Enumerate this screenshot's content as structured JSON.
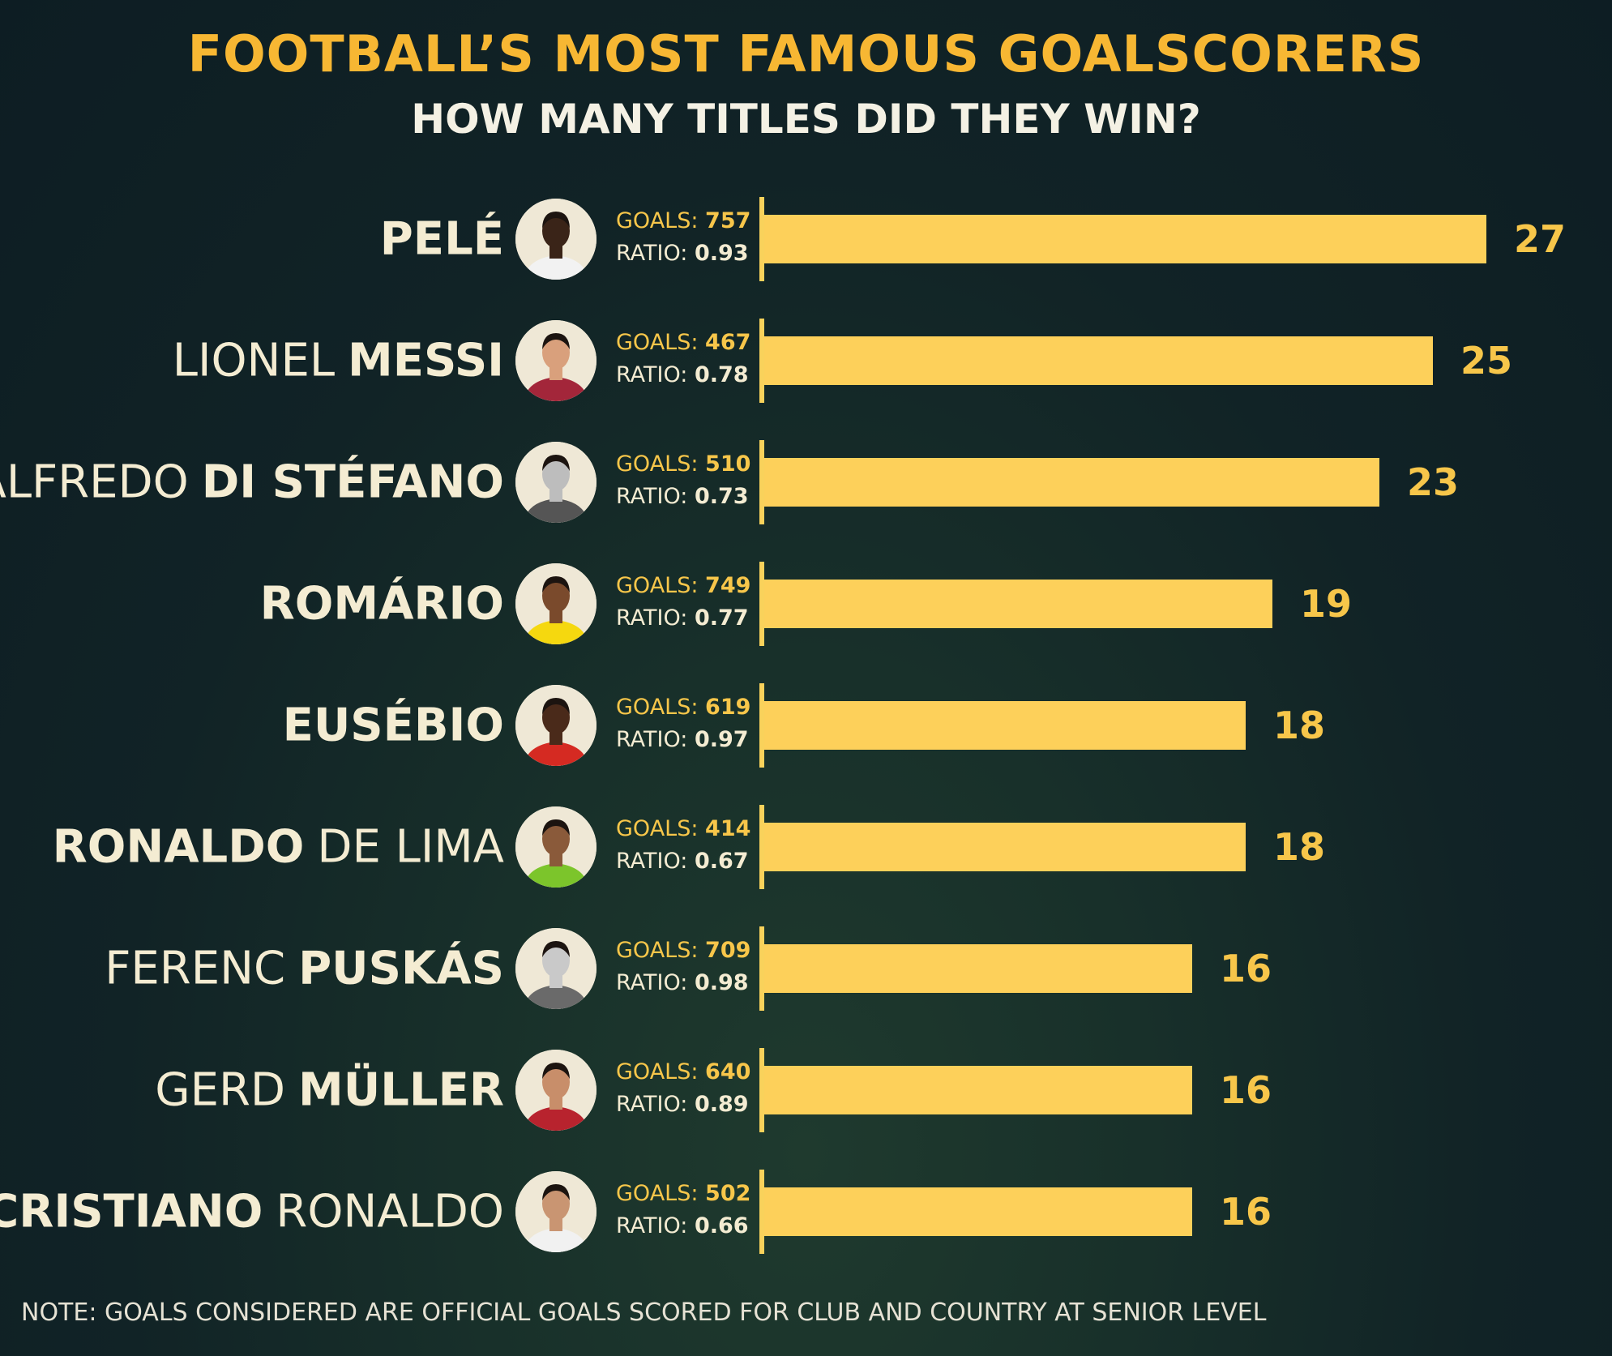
{
  "title": "FOOTBALL’S MOST FAMOUS GOALSCORERS",
  "subtitle": "HOW MANY TITLES DID THEY WIN?",
  "goals_label": "GOALS:",
  "ratio_label": "RATIO:",
  "note": "NOTE: GOALS CONSIDERED ARE OFFICIAL GOALS SCORED FOR CLUB AND COUNTRY AT SENIOR LEVEL",
  "colors": {
    "title": "#f7b733",
    "bar": "#fdd05a",
    "value": "#f7c64a",
    "text": "#f4ecd2"
  },
  "players": [
    {
      "first": "",
      "last": "PELÉ",
      "bold_part": "last",
      "goals": "757",
      "ratio": "0.93",
      "titles": 27,
      "icon": "pele-portrait-icon",
      "shirt": "#f2f2f2",
      "skin": "#3a2418"
    },
    {
      "first": "LIONEL",
      "last": "MESSI",
      "bold_part": "last",
      "goals": "467",
      "ratio": "0.78",
      "titles": 25,
      "icon": "messi-portrait-icon",
      "shirt": "#a3263a",
      "skin": "#d9a07c"
    },
    {
      "first": "ALFREDO",
      "last": "DI STÉFANO",
      "bold_part": "last",
      "goals": "510",
      "ratio": "0.73",
      "titles": 23,
      "icon": "di-stefano-portrait-icon",
      "shirt": "#555555",
      "skin": "#bdbdbd"
    },
    {
      "first": "",
      "last": "ROMÁRIO",
      "bold_part": "last",
      "goals": "749",
      "ratio": "0.77",
      "titles": 19,
      "icon": "romario-portrait-icon",
      "shirt": "#f5d80f",
      "skin": "#7a4a2c"
    },
    {
      "first": "",
      "last": "EUSÉBIO",
      "bold_part": "last",
      "goals": "619",
      "ratio": "0.97",
      "titles": 18,
      "icon": "eusebio-portrait-icon",
      "shirt": "#d52a22",
      "skin": "#4a2a1a"
    },
    {
      "first": "RONALDO",
      "last": "DE LIMA",
      "bold_part": "first",
      "goals": "414",
      "ratio": "0.67",
      "titles": 18,
      "icon": "ronaldo-de-lima-portrait-icon",
      "shirt": "#7cc52b",
      "skin": "#8a5a3a"
    },
    {
      "first": "FERENC",
      "last": "PUSKÁS",
      "bold_part": "last",
      "goals": "709",
      "ratio": "0.98",
      "titles": 16,
      "icon": "puskas-portrait-icon",
      "shirt": "#6a6a6a",
      "skin": "#c9c9c9"
    },
    {
      "first": "GERD",
      "last": "MÜLLER",
      "bold_part": "last",
      "goals": "640",
      "ratio": "0.89",
      "titles": 16,
      "icon": "muller-portrait-icon",
      "shirt": "#b8232e",
      "skin": "#c88e6a"
    },
    {
      "first": "CRISTIANO",
      "last": "RONALDO",
      "bold_part": "first",
      "goals": "502",
      "ratio": "0.66",
      "titles": 16,
      "icon": "cristiano-ronaldo-portrait-icon",
      "shirt": "#f1f1f1",
      "skin": "#c99572"
    }
  ],
  "chart_data": {
    "type": "bar",
    "title": "FOOTBALL’S MOST FAMOUS GOALSCORERS",
    "subtitle": "HOW MANY TITLES DID THEY WIN?",
    "categories": [
      "PELÉ",
      "LIONEL MESSI",
      "ALFREDO DI STÉFANO",
      "ROMÁRIO",
      "EUSÉBIO",
      "RONALDO DE LIMA",
      "FERENC PUSKÁS",
      "GERD MÜLLER",
      "CRISTIANO RONALDO"
    ],
    "values": [
      27,
      25,
      23,
      19,
      18,
      18,
      16,
      16,
      16
    ],
    "goals": [
      757,
      467,
      510,
      749,
      619,
      414,
      709,
      640,
      502
    ],
    "ratio": [
      0.93,
      0.78,
      0.73,
      0.77,
      0.97,
      0.67,
      0.98,
      0.89,
      0.66
    ],
    "orientation": "horizontal",
    "grid": false,
    "legend": "none"
  }
}
